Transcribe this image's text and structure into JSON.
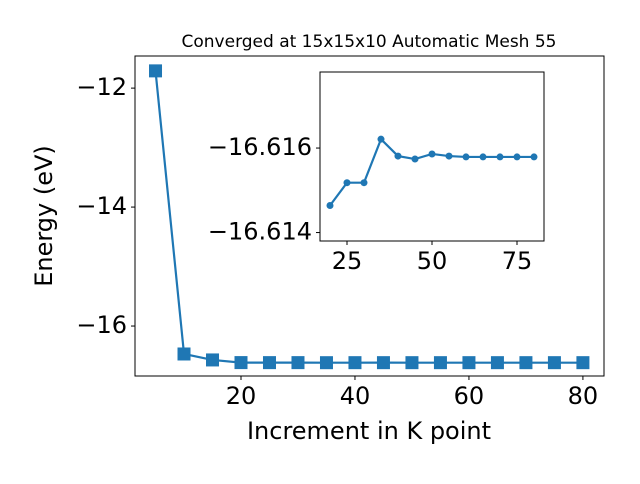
{
  "chart_data": [
    {
      "type": "line",
      "title": "Converged at 15x15x10 Automatic Mesh 55",
      "xlabel": "Increment in K point",
      "ylabel": "Energy (eV)",
      "x": [
        5,
        10,
        15,
        20,
        25,
        30,
        35,
        40,
        45,
        50,
        55,
        60,
        65,
        70,
        75,
        80
      ],
      "series": [
        {
          "color": "#1f77b4",
          "marker": "square",
          "values": [
            -11.71,
            -16.47,
            -16.57,
            -16.61464,
            -16.61518,
            -16.61518,
            -16.61621,
            -16.61581,
            -16.61574,
            -16.61586,
            -16.61581,
            -16.61579,
            -16.61579,
            -16.61579,
            -16.61579,
            -16.61579
          ]
        }
      ],
      "xlim": [
        1.4,
        83.7
      ],
      "ylim": [
        -16.84,
        -11.46
      ],
      "xticks": [
        20,
        40,
        60,
        80
      ],
      "yticks": [
        {
          "value": -16,
          "label": "−16"
        },
        {
          "value": -14,
          "label": "−14"
        },
        {
          "value": -12,
          "label": "−12"
        }
      ]
    },
    {
      "type": "line",
      "x": [
        20,
        25,
        30,
        35,
        40,
        45,
        50,
        55,
        60,
        65,
        70,
        75,
        80
      ],
      "series": [
        {
          "color": "#1f77b4",
          "marker": "circle",
          "values": [
            -16.61464,
            -16.61518,
            -16.61518,
            -16.61621,
            -16.61581,
            -16.61574,
            -16.61586,
            -16.61581,
            -16.61579,
            -16.61579,
            -16.61579,
            -16.61579,
            -16.61579
          ]
        }
      ],
      "xlim": [
        17.06,
        82.94
      ],
      "ylim": [
        -16.6138,
        -16.6178
      ],
      "xticks": [
        25,
        50,
        75
      ],
      "yticks": [
        {
          "value": -16.616,
          "label": "−16.616"
        },
        {
          "value": -16.614,
          "label": "−16.614"
        }
      ]
    }
  ]
}
